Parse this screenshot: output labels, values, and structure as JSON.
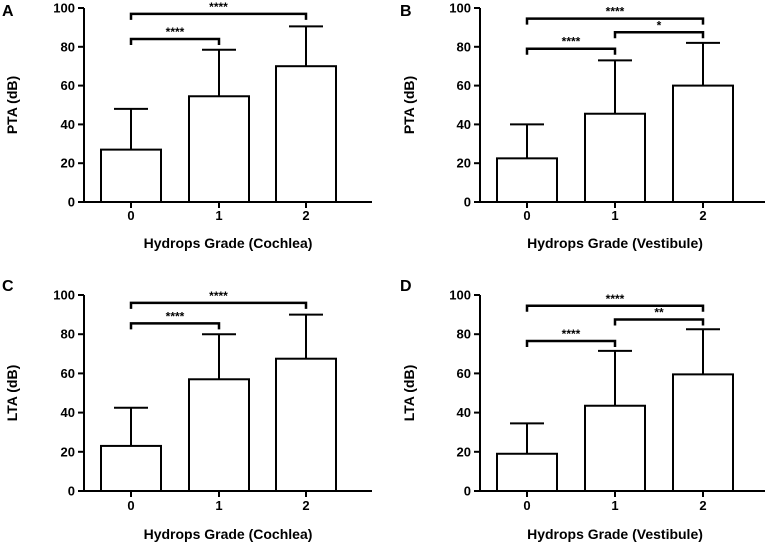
{
  "chart_data": [
    {
      "panel": "A",
      "type": "bar",
      "categories": [
        "0",
        "1",
        "2"
      ],
      "values": [
        27,
        54.5,
        70
      ],
      "errors": [
        48,
        78.5,
        90.5
      ],
      "ylim": [
        0,
        100
      ],
      "yticks": [
        0,
        20,
        40,
        60,
        80,
        100
      ],
      "ylabel": "PTA (dB)",
      "xlabel": "Hydrops Grade (Cochlea)",
      "comparisons": [
        {
          "from": 0,
          "to": 1,
          "label": "****",
          "level": 84
        },
        {
          "from": 0,
          "to": 2,
          "label": "****",
          "level": 97
        }
      ]
    },
    {
      "panel": "B",
      "type": "bar",
      "categories": [
        "0",
        "1",
        "2"
      ],
      "values": [
        22.5,
        45.5,
        60
      ],
      "errors": [
        40,
        73,
        82
      ],
      "ylim": [
        0,
        100
      ],
      "yticks": [
        0,
        20,
        40,
        60,
        80,
        100
      ],
      "ylabel": "PTA (dB)",
      "xlabel": "Hydrops Grade (Vestibule)",
      "comparisons": [
        {
          "from": 0,
          "to": 1,
          "label": "****",
          "level": 79
        },
        {
          "from": 1,
          "to": 2,
          "label": "*",
          "level": 87.5
        },
        {
          "from": 0,
          "to": 2,
          "label": "****",
          "level": 94.5
        }
      ]
    },
    {
      "panel": "C",
      "type": "bar",
      "categories": [
        "0",
        "1",
        "2"
      ],
      "values": [
        23,
        57,
        67.5
      ],
      "errors": [
        42.5,
        80,
        90
      ],
      "ylim": [
        0,
        100
      ],
      "yticks": [
        0,
        20,
        40,
        60,
        80,
        100
      ],
      "ylabel": "LTA (dB)",
      "xlabel": "Hydrops Grade (Cochlea)",
      "comparisons": [
        {
          "from": 0,
          "to": 1,
          "label": "****",
          "level": 85.5
        },
        {
          "from": 0,
          "to": 2,
          "label": "****",
          "level": 96
        }
      ]
    },
    {
      "panel": "D",
      "type": "bar",
      "categories": [
        "0",
        "1",
        "2"
      ],
      "values": [
        19,
        43.5,
        59.5
      ],
      "errors": [
        34.5,
        71.5,
        82.5
      ],
      "ylim": [
        0,
        100
      ],
      "yticks": [
        0,
        20,
        40,
        60,
        80,
        100
      ],
      "ylabel": "LTA (dB)",
      "xlabel": "Hydrops Grade (Vestibule)",
      "comparisons": [
        {
          "from": 0,
          "to": 1,
          "label": "****",
          "level": 76.5
        },
        {
          "from": 1,
          "to": 2,
          "label": "**",
          "level": 87.5
        },
        {
          "from": 0,
          "to": 2,
          "label": "****",
          "level": 94.5
        }
      ]
    }
  ]
}
